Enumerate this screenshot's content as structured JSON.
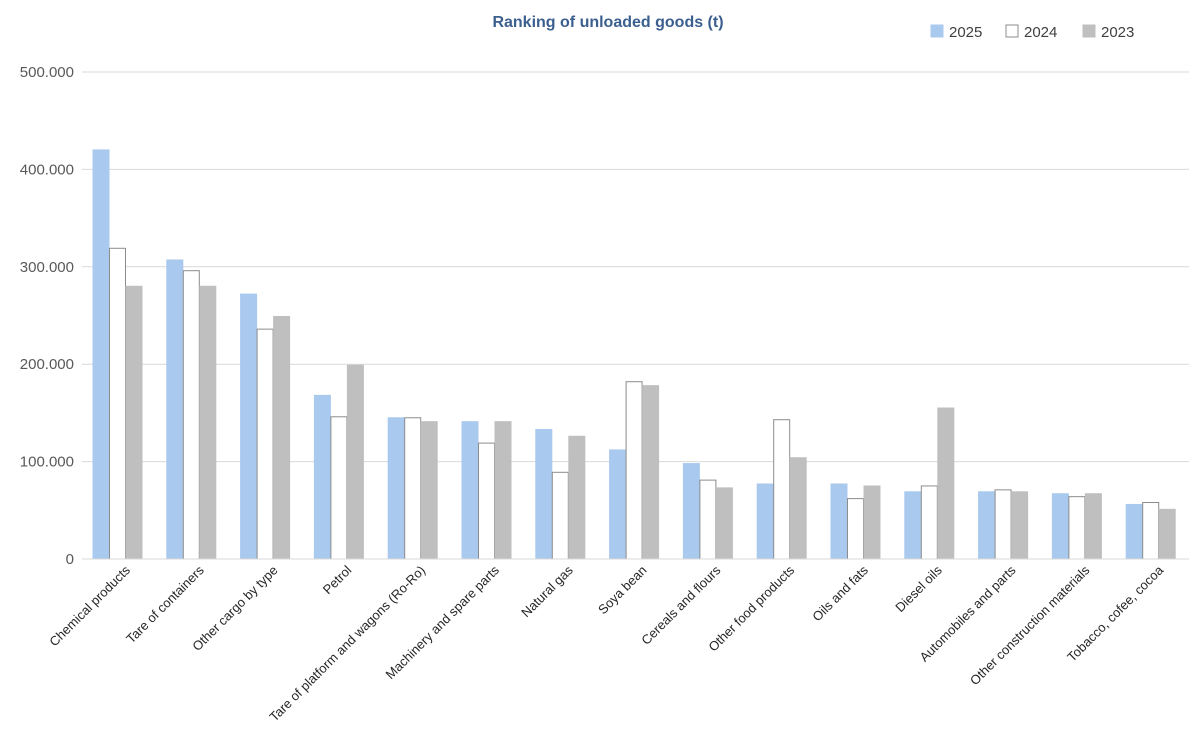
{
  "chart_data": {
    "type": "bar",
    "title": "Ranking of unloaded goods (t)",
    "xlabel": "",
    "ylabel": "",
    "ylim": [
      0,
      500000
    ],
    "yticks": [
      0,
      100000,
      200000,
      300000,
      400000,
      500000
    ],
    "ytick_labels": [
      "0",
      "100.000",
      "200.000",
      "300.000",
      "400.000",
      "500.000"
    ],
    "grid": true,
    "legend_position": "top-right",
    "categories": [
      "Chemical products",
      "Tare of containers",
      "Other cargo by type",
      "Petrol",
      "Tare of platform and wagons (Ro-Ro)",
      "Machinery and spare parts",
      "Natural gas",
      "Soya bean",
      "Cereals and flours",
      "Other food products",
      "Oils and fats",
      "Diesel oils",
      "Automobiles and parts",
      "Other construction materials",
      "Tobacco, cofee, cocoa"
    ],
    "series": [
      {
        "name": "2025",
        "color": "#a9c9ee",
        "stroke": "#a9c9ee",
        "values": [
          420000,
          307000,
          272000,
          168000,
          145000,
          141000,
          133000,
          112000,
          98000,
          77000,
          77000,
          69000,
          69000,
          67000,
          56000
        ]
      },
      {
        "name": "2024",
        "color": "#ffffff",
        "stroke": "#8c8c8c",
        "values": [
          319000,
          296000,
          236000,
          146000,
          145000,
          119000,
          89000,
          182000,
          81000,
          143000,
          62000,
          75000,
          71000,
          64000,
          58000
        ]
      },
      {
        "name": "2023",
        "color": "#bfbfbf",
        "stroke": "#bfbfbf",
        "values": [
          280000,
          280000,
          249000,
          199000,
          141000,
          141000,
          126000,
          178000,
          73000,
          104000,
          75000,
          155000,
          69000,
          67000,
          51000
        ]
      }
    ]
  }
}
